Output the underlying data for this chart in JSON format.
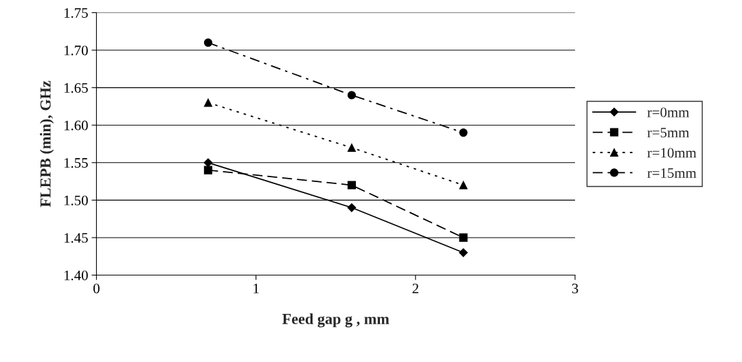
{
  "chart_data": {
    "type": "line",
    "xlabel": "Feed gap g , mm",
    "ylabel": "FLEPB (min), GHz",
    "x": [
      0.7,
      1.6,
      2.3
    ],
    "series": [
      {
        "name": "r=0mm",
        "color": "#000000",
        "marker": "diamond",
        "line_style": "solid",
        "values": [
          1.55,
          1.49,
          1.43
        ]
      },
      {
        "name": "r=5mm",
        "color": "#000000",
        "marker": "square",
        "line_style": "dashed",
        "values": [
          1.54,
          1.52,
          1.45
        ]
      },
      {
        "name": "r=10mm",
        "color": "#000000",
        "marker": "triangle",
        "line_style": "dotted",
        "values": [
          1.63,
          1.57,
          1.52
        ]
      },
      {
        "name": "r=15mm",
        "color": "#000000",
        "marker": "circle",
        "line_style": "dashdot",
        "values": [
          1.71,
          1.64,
          1.59
        ]
      }
    ],
    "xlim": [
      0,
      3
    ],
    "xticks": [
      0,
      1,
      2,
      3
    ],
    "ylim": [
      1.4,
      1.75
    ],
    "yticks": [
      {
        "value": 1.4,
        "label": "1.40"
      },
      {
        "value": 1.45,
        "label": "1.45"
      },
      {
        "value": 1.5,
        "label": "1.50"
      },
      {
        "value": 1.55,
        "label": "1.55"
      },
      {
        "value": 1.6,
        "label": "1.60"
      },
      {
        "value": 1.65,
        "label": "1.65"
      },
      {
        "value": 1.7,
        "label": "1.70"
      },
      {
        "value": 1.75,
        "label": "1.75"
      }
    ],
    "grid": "y",
    "legend": "right"
  }
}
